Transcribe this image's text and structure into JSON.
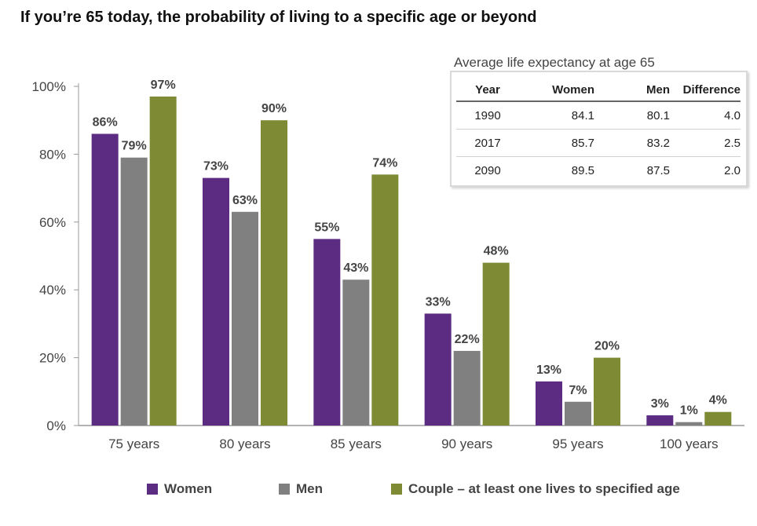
{
  "page_title": "If you’re 65 today, the probability of living to a specific age or beyond",
  "chart_data": {
    "type": "bar",
    "title": "If you’re 65 today, the probability of living to a specific age or beyond",
    "categories": [
      "75 years",
      "80 years",
      "85 years",
      "90 years",
      "95 years",
      "100 years"
    ],
    "series": [
      {
        "name": "Women",
        "color": "#5b2c82",
        "values": [
          86,
          73,
          55,
          33,
          13,
          3
        ]
      },
      {
        "name": "Men",
        "color": "#808080",
        "values": [
          79,
          63,
          43,
          22,
          7,
          1
        ]
      },
      {
        "name": "Couple – at least one lives to specified age",
        "color": "#7f8a34",
        "values": [
          97,
          90,
          74,
          48,
          20,
          4
        ]
      }
    ],
    "ylim": [
      0,
      100
    ],
    "yticks": [
      "0%",
      "20%",
      "40%",
      "60%",
      "80%",
      "100%"
    ],
    "ytick_values": [
      0,
      20,
      40,
      60,
      80,
      100
    ],
    "value_suffix": "%",
    "xlabel": "",
    "ylabel": "",
    "legend_position": "bottom"
  },
  "inset_table": {
    "caption": "Average life expectancy at age 65",
    "headers": {
      "year": "Year",
      "women": "Women",
      "men": "Men",
      "difference": "Difference"
    },
    "rows": [
      {
        "year": "1990",
        "women": "84.1",
        "men": "80.1",
        "difference": "4.0"
      },
      {
        "year": "2017",
        "women": "85.7",
        "men": "83.2",
        "difference": "2.5"
      },
      {
        "year": "2090",
        "women": "89.5",
        "men": "87.5",
        "difference": "2.0"
      }
    ]
  },
  "legend": [
    {
      "label": "Women",
      "color": "#5b2c82"
    },
    {
      "label": "Men",
      "color": "#808080"
    },
    {
      "label": "Couple – at least one lives to specified age",
      "color": "#7f8a34"
    }
  ]
}
